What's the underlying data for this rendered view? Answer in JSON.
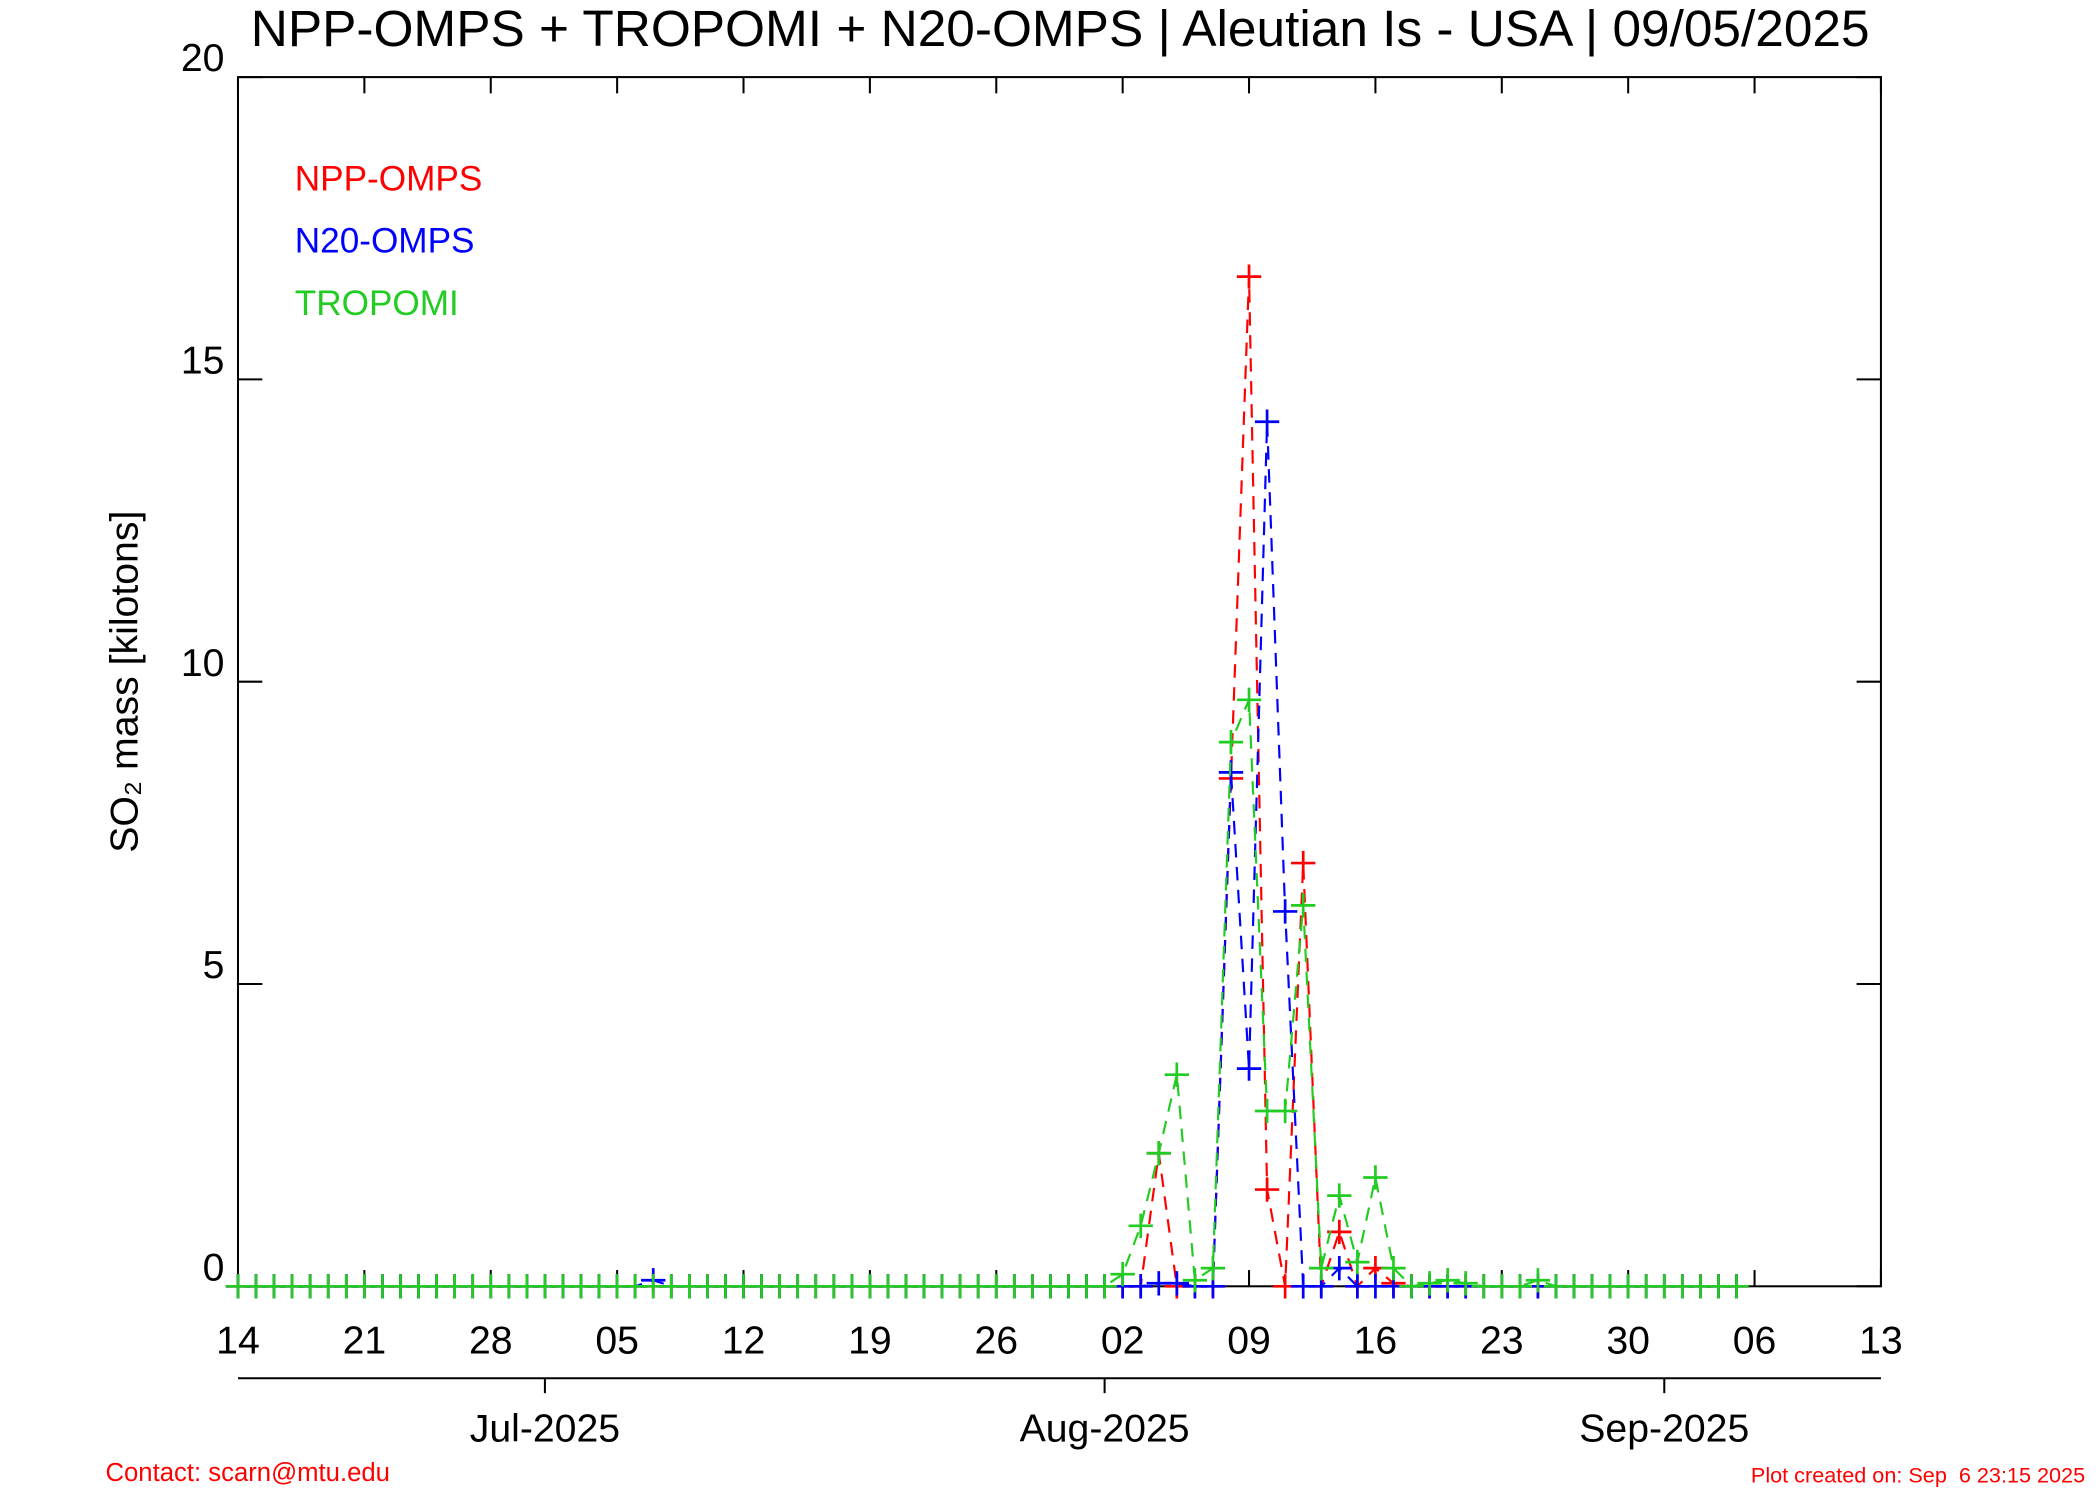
{
  "chart_data": {
    "type": "line",
    "title": "NPP-OMPS + TROPOMI + N20-OMPS | Aleutian Is - USA | 09/05/2025",
    "y_label": "SO₂ mass [kilotons]",
    "x": [
      "2025-06-14",
      "2025-06-15",
      "2025-06-16",
      "2025-06-17",
      "2025-06-18",
      "2025-06-19",
      "2025-06-20",
      "2025-06-21",
      "2025-06-22",
      "2025-06-23",
      "2025-06-24",
      "2025-06-25",
      "2025-06-26",
      "2025-06-27",
      "2025-06-28",
      "2025-06-29",
      "2025-06-30",
      "2025-07-01",
      "2025-07-02",
      "2025-07-03",
      "2025-07-04",
      "2025-07-05",
      "2025-07-06",
      "2025-07-07",
      "2025-07-08",
      "2025-07-09",
      "2025-07-10",
      "2025-07-11",
      "2025-07-12",
      "2025-07-13",
      "2025-07-14",
      "2025-07-15",
      "2025-07-16",
      "2025-07-17",
      "2025-07-18",
      "2025-07-19",
      "2025-07-20",
      "2025-07-21",
      "2025-07-22",
      "2025-07-23",
      "2025-07-24",
      "2025-07-25",
      "2025-07-26",
      "2025-07-27",
      "2025-07-28",
      "2025-07-29",
      "2025-07-30",
      "2025-07-31",
      "2025-08-01",
      "2025-08-02",
      "2025-08-03",
      "2025-08-04",
      "2025-08-05",
      "2025-08-06",
      "2025-08-07",
      "2025-08-08",
      "2025-08-09",
      "2025-08-10",
      "2025-08-11",
      "2025-08-12",
      "2025-08-13",
      "2025-08-14",
      "2025-08-15",
      "2025-08-16",
      "2025-08-17",
      "2025-08-18",
      "2025-08-19",
      "2025-08-20",
      "2025-08-21",
      "2025-08-22",
      "2025-08-23",
      "2025-08-24",
      "2025-08-25",
      "2025-08-26",
      "2025-08-27",
      "2025-08-28",
      "2025-08-29",
      "2025-08-30",
      "2025-08-31",
      "2025-09-01",
      "2025-09-02",
      "2025-09-03",
      "2025-09-04",
      "2025-09-05"
    ],
    "series": [
      {
        "name": "NPP-OMPS",
        "color": "#ff0000",
        "values": [
          0,
          0,
          0,
          0,
          0,
          0,
          0,
          0,
          0,
          0,
          0,
          0,
          0,
          0,
          0,
          0,
          0,
          0,
          0,
          0,
          0,
          0,
          0,
          0,
          0,
          0,
          0,
          0,
          0,
          0,
          0,
          0,
          0,
          0,
          0,
          0,
          0,
          0,
          0,
          0,
          0,
          0,
          0,
          0,
          0,
          0,
          0,
          0,
          0,
          0,
          0,
          2.2,
          0,
          0,
          0,
          8.4,
          16.7,
          1.6,
          0,
          7.0,
          0,
          0.9,
          0,
          0.3,
          0.05,
          0,
          0,
          0,
          0,
          0,
          0,
          0,
          0,
          0,
          0,
          0,
          0,
          0,
          0,
          0,
          0,
          0,
          0,
          0
        ]
      },
      {
        "name": "N20-OMPS",
        "color": "#0000ff",
        "values": [
          0,
          0,
          0,
          0,
          0,
          0,
          0,
          0,
          0,
          0,
          0,
          0,
          0,
          0,
          0,
          0,
          0,
          0,
          0,
          0,
          0,
          0,
          0,
          0.1,
          0,
          0,
          0,
          0,
          0,
          0,
          0,
          0,
          0,
          0,
          0,
          0,
          0,
          0,
          0,
          0,
          0,
          0,
          0,
          0,
          0,
          0,
          0,
          0,
          0,
          0,
          0,
          0.05,
          0.05,
          0,
          0,
          8.5,
          3.6,
          14.3,
          6.2,
          0,
          0,
          0.3,
          0,
          0,
          0,
          0,
          0,
          0,
          0,
          0,
          0,
          0,
          0,
          0,
          0,
          0,
          0,
          0,
          0,
          0,
          0,
          0,
          0,
          0
        ]
      },
      {
        "name": "TROPOMI",
        "color": "#22cc22",
        "values": [
          0,
          0,
          0,
          0,
          0,
          0,
          0,
          0,
          0,
          0,
          0,
          0,
          0,
          0,
          0,
          0,
          0,
          0,
          0,
          0,
          0,
          0,
          0,
          0,
          0,
          0,
          0,
          0,
          0,
          0,
          0,
          0,
          0,
          0,
          0,
          0,
          0,
          0,
          0,
          0,
          0,
          0,
          0,
          0,
          0,
          0,
          0,
          0,
          0,
          0.2,
          1.0,
          2.2,
          3.5,
          0.1,
          0.3,
          9.0,
          9.7,
          2.9,
          2.9,
          6.3,
          0.3,
          1.5,
          0.4,
          1.8,
          0.3,
          0,
          0.05,
          0.1,
          0.05,
          0,
          0,
          0,
          0.1,
          0,
          0,
          0,
          0,
          0,
          0,
          0,
          0,
          0,
          0,
          0
        ]
      }
    ],
    "xlim": [
      "2025-06-14",
      "2025-09-13"
    ],
    "xticks": [
      {
        "value": "2025-06-14",
        "label": "14"
      },
      {
        "value": "2025-06-21",
        "label": "21"
      },
      {
        "value": "2025-06-28",
        "label": "28"
      },
      {
        "value": "2025-07-05",
        "label": "05"
      },
      {
        "value": "2025-07-12",
        "label": "12"
      },
      {
        "value": "2025-07-19",
        "label": "19"
      },
      {
        "value": "2025-07-26",
        "label": "26"
      },
      {
        "value": "2025-08-02",
        "label": "02"
      },
      {
        "value": "2025-08-09",
        "label": "09"
      },
      {
        "value": "2025-08-16",
        "label": "16"
      },
      {
        "value": "2025-08-23",
        "label": "23"
      },
      {
        "value": "2025-08-30",
        "label": "30"
      },
      {
        "value": "2025-09-06",
        "label": "06"
      },
      {
        "value": "2025-09-13",
        "label": "13"
      }
    ],
    "month_ticks": [
      {
        "value": "2025-07-01",
        "label": "Jul-2025"
      },
      {
        "value": "2025-08-01",
        "label": "Aug-2025"
      },
      {
        "value": "2025-09-01",
        "label": "Sep-2025"
      }
    ],
    "ylim": [
      0,
      20
    ],
    "yticks": [
      0,
      5,
      10,
      15,
      20
    ],
    "contact": "Contact: scarn@mtu.edu",
    "created": "Plot created on: Sep  6 23:15 2025"
  }
}
